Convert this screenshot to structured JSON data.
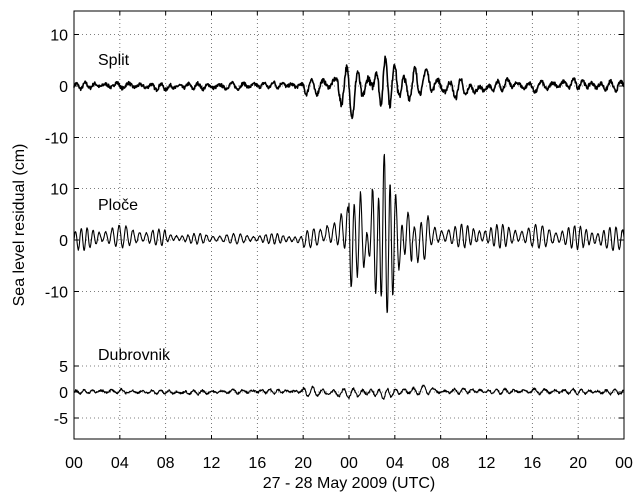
{
  "chart_data": {
    "type": "line",
    "ylabel": "Sea level residual (cm)",
    "xlabel": "27 - 28 May 2009 (UTC)",
    "x_tick_labels": [
      "00",
      "04",
      "08",
      "12",
      "16",
      "20",
      "00",
      "04",
      "08",
      "12",
      "16",
      "20",
      "00"
    ],
    "x_unit": "hours since 00 UTC 27 May 2009",
    "xlim": [
      0,
      48
    ],
    "grid": true,
    "series": [
      {
        "name": "Split",
        "ylim": [
          -10,
          10
        ],
        "y_ticks": [
          "10",
          "0",
          "-10"
        ],
        "x": [
          0,
          2,
          4,
          6,
          8,
          10,
          12,
          14,
          16,
          18,
          20,
          21,
          22,
          23,
          24,
          24.5,
          25,
          25.5,
          26,
          26.5,
          27,
          27.5,
          28,
          29,
          30,
          31,
          32,
          34,
          36,
          38,
          40,
          42,
          44,
          46,
          48
        ],
        "y": [
          0,
          0.5,
          0.5,
          0,
          -1,
          0,
          -0.5,
          0,
          0.5,
          1,
          0,
          -1.5,
          1.5,
          2.5,
          -5,
          -7,
          3,
          -4,
          9,
          -3,
          6,
          2,
          4,
          -2,
          2,
          5,
          -1,
          -3,
          -2,
          2,
          -1,
          1,
          2,
          0,
          0
        ]
      },
      {
        "name": "Ploče",
        "ylim": [
          -10,
          10
        ],
        "y_ticks": [
          "10",
          "0",
          "-10"
        ],
        "x": [
          0,
          2,
          4,
          6,
          8,
          10,
          12,
          14,
          16,
          18,
          20,
          21,
          22,
          23,
          24,
          24.5,
          25,
          25.5,
          26,
          26.5,
          27,
          27.5,
          28,
          28.5,
          29,
          30,
          31,
          32,
          34,
          36,
          38,
          40,
          42,
          44,
          46,
          48
        ],
        "y": [
          0,
          2,
          3,
          2,
          2,
          1,
          1,
          1,
          1,
          1,
          0,
          2,
          4,
          6,
          10,
          -10,
          14,
          -14,
          16,
          -16,
          17,
          -12,
          12,
          -8,
          8,
          -4,
          4,
          3,
          3,
          3,
          3,
          3,
          2,
          2,
          1,
          1
        ]
      },
      {
        "name": "Dubrovnik",
        "ylim": [
          -5,
          5
        ],
        "y_ticks": [
          "5",
          "0",
          "-5"
        ],
        "x": [
          0,
          2,
          4,
          6,
          8,
          10,
          12,
          14,
          16,
          18,
          20,
          22,
          24,
          26,
          27,
          28,
          30,
          31,
          32,
          34,
          36,
          38,
          40,
          42,
          44,
          46,
          48
        ],
        "y": [
          0,
          0.5,
          0.5,
          0,
          0,
          -0.5,
          0,
          0.5,
          0.5,
          0.5,
          0.5,
          -0.5,
          -1,
          0,
          -2,
          0,
          1,
          2,
          0,
          1,
          0.5,
          0.5,
          0.5,
          0.5,
          0.5,
          0,
          0
        ]
      }
    ]
  }
}
